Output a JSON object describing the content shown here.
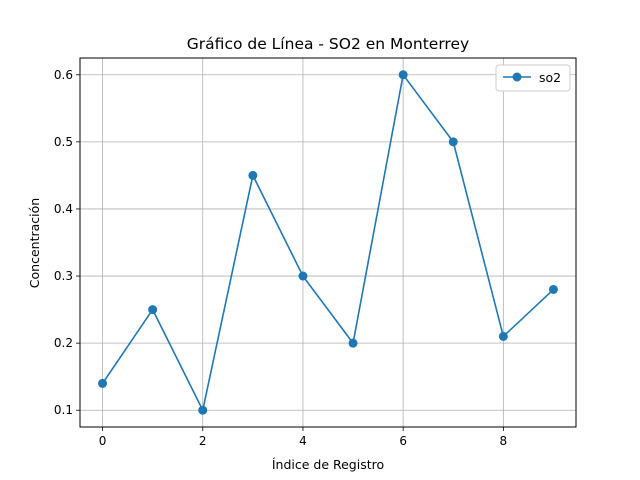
{
  "chart_data": {
    "type": "line",
    "title": "Gráfico de Línea - SO2 en Monterrey",
    "xlabel": "Índice de Registro",
    "ylabel": "Concentración",
    "x": [
      0,
      1,
      2,
      3,
      4,
      5,
      6,
      7,
      8,
      9
    ],
    "series": [
      {
        "name": "so2",
        "values": [
          0.14,
          0.25,
          0.1,
          0.45,
          0.3,
          0.2,
          0.6,
          0.5,
          0.21,
          0.28
        ]
      }
    ],
    "xlim": [
      -0.45,
      9.45
    ],
    "ylim": [
      0.075,
      0.625
    ],
    "xticks": [
      0,
      2,
      4,
      6,
      8
    ],
    "yticks": [
      0.1,
      0.2,
      0.3,
      0.4,
      0.5,
      0.6
    ],
    "xtick_labels": [
      "0",
      "2",
      "4",
      "6",
      "8"
    ],
    "ytick_labels": [
      "0.1",
      "0.2",
      "0.3",
      "0.4",
      "0.5",
      "0.6"
    ],
    "grid": true,
    "legend": "upper right",
    "line_color": "#1f77b4"
  }
}
